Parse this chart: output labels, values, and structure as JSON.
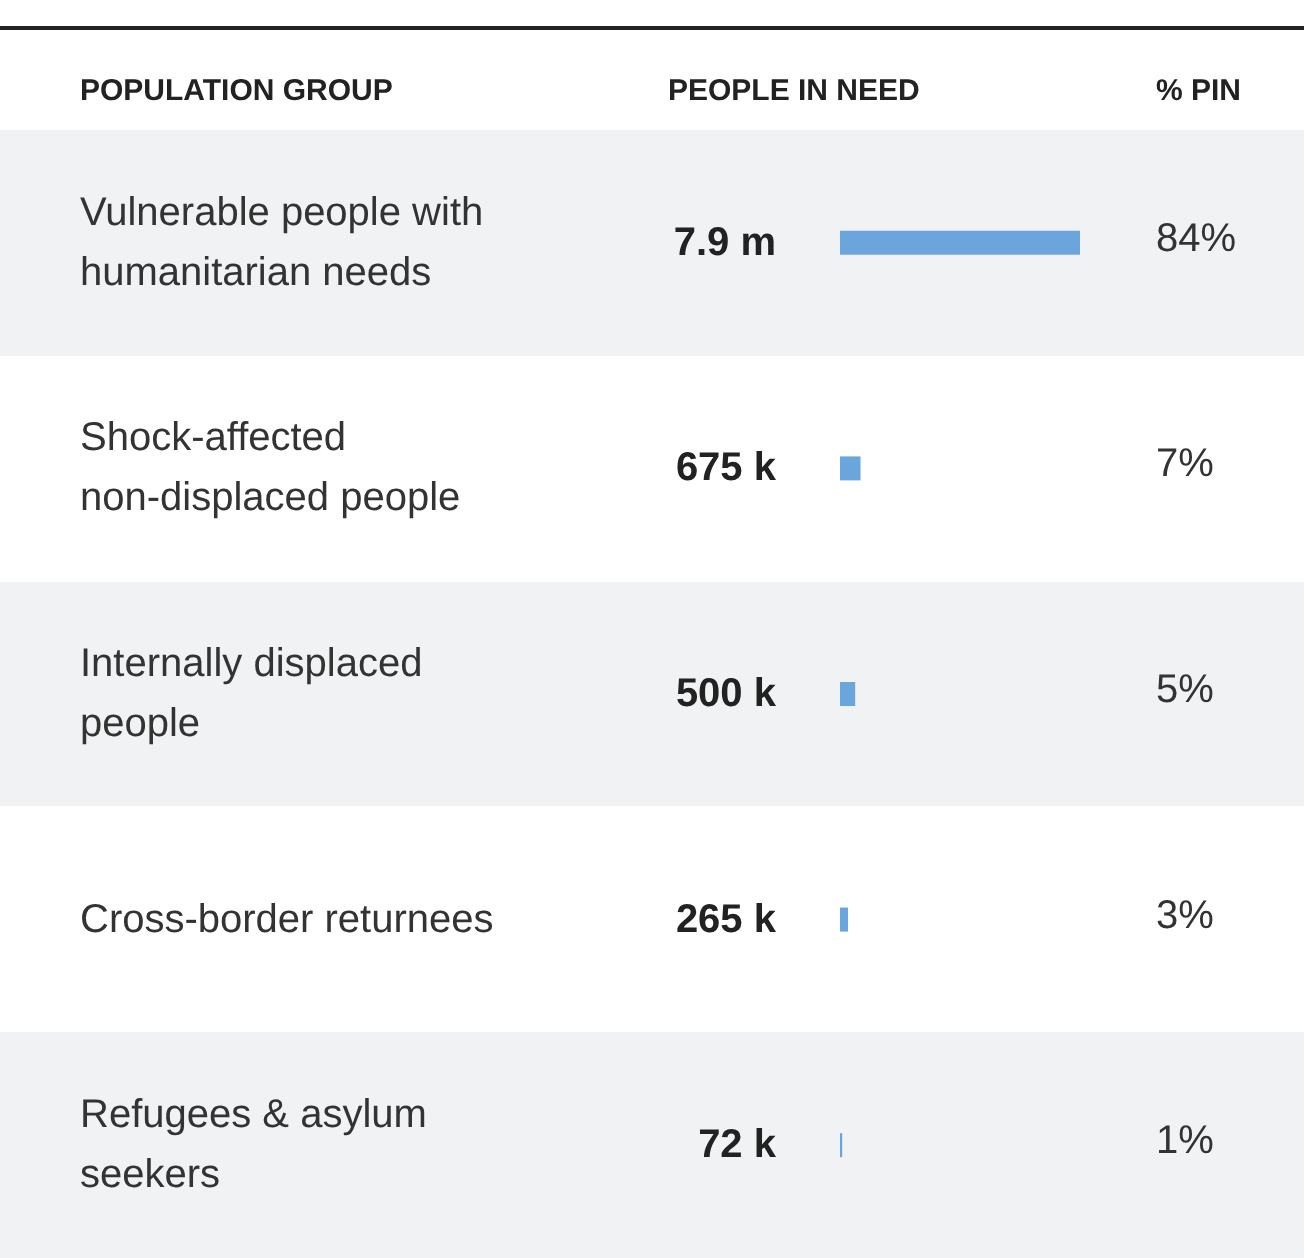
{
  "chart_data": {
    "type": "bar",
    "orientation": "horizontal",
    "ylabel": "POPULATION GROUP",
    "xlabel": "PEOPLE IN NEED",
    "categories": [
      "Vulnerable people with humanitarian needs",
      "Shock-affected non-displaced people",
      "Internally displaced people",
      "Cross-border returnees",
      "Refugees & asylum seekers"
    ],
    "values": [
      7900000,
      675000,
      500000,
      265000,
      72000
    ],
    "value_labels": [
      "7.9 m",
      "675 k",
      "500 k",
      "265 k",
      "72 k"
    ],
    "color": "#6aa5dc",
    "annotations": [
      "% PIN",
      "84%",
      "7%",
      "5%",
      "3%",
      "1%"
    ]
  }
}
